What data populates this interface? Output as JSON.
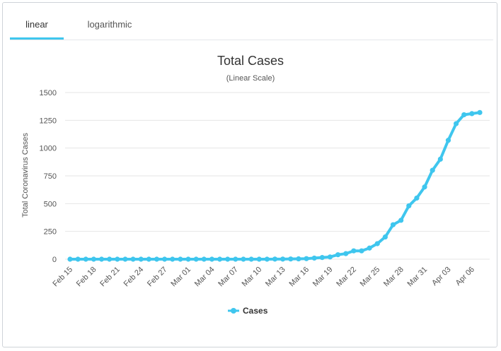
{
  "tabs": [
    {
      "label": "linear",
      "active": true
    },
    {
      "label": "logarithmic",
      "active": false
    }
  ],
  "colors": {
    "accent": "#3fc6ee",
    "grid": "#e6e6e6",
    "text": "#333333"
  },
  "chart_data": {
    "type": "line",
    "title": "Total Cases",
    "subtitle": "(Linear Scale)",
    "xlabel": "",
    "ylabel": "Total Coronavirus Cases",
    "ylim": [
      0,
      1500
    ],
    "yticks": [
      0,
      250,
      500,
      750,
      1000,
      1250,
      1500
    ],
    "grid": true,
    "legend": "bottom-center",
    "x": [
      "Feb 15",
      "Feb 16",
      "Feb 17",
      "Feb 18",
      "Feb 19",
      "Feb 20",
      "Feb 21",
      "Feb 22",
      "Feb 23",
      "Feb 24",
      "Feb 25",
      "Feb 26",
      "Feb 27",
      "Feb 28",
      "Feb 29",
      "Mar 01",
      "Mar 02",
      "Mar 03",
      "Mar 04",
      "Mar 05",
      "Mar 06",
      "Mar 07",
      "Mar 08",
      "Mar 09",
      "Mar 10",
      "Mar 11",
      "Mar 12",
      "Mar 13",
      "Mar 14",
      "Mar 15",
      "Mar 16",
      "Mar 17",
      "Mar 18",
      "Mar 19",
      "Mar 20",
      "Mar 21",
      "Mar 22",
      "Mar 23",
      "Mar 24",
      "Mar 25",
      "Mar 26",
      "Mar 27",
      "Mar 28",
      "Mar 29",
      "Mar 30",
      "Mar 31",
      "Apr 01",
      "Apr 02",
      "Apr 03",
      "Apr 04",
      "Apr 05",
      "Apr 06",
      "Apr 07"
    ],
    "xtick_labels": [
      "Feb 15",
      "Feb 18",
      "Feb 21",
      "Feb 24",
      "Feb 27",
      "Mar 01",
      "Mar 04",
      "Mar 07",
      "Mar 10",
      "Mar 13",
      "Mar 16",
      "Mar 19",
      "Mar 22",
      "Mar 25",
      "Mar 28",
      "Mar 31",
      "Apr 03",
      "Apr 06"
    ],
    "series": [
      {
        "name": "Cases",
        "color": "#3fc6ee",
        "values": [
          0,
          0,
          0,
          0,
          0,
          0,
          0,
          0,
          0,
          0,
          0,
          0,
          0,
          0,
          0,
          0,
          0,
          0,
          0,
          0,
          0,
          0,
          0,
          0,
          0,
          0,
          1,
          1,
          2,
          3,
          5,
          10,
          15,
          20,
          40,
          50,
          75,
          75,
          100,
          140,
          200,
          310,
          350,
          480,
          550,
          650,
          800,
          900,
          1070,
          1220,
          1300,
          1310,
          1320
        ]
      }
    ]
  }
}
